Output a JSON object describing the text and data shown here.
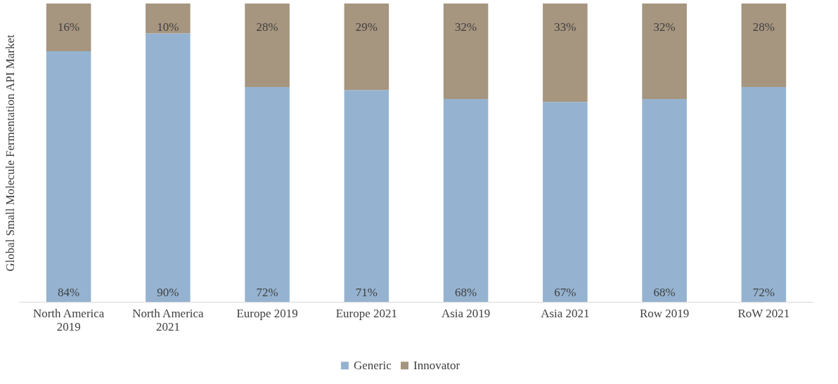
{
  "chart_data": {
    "type": "bar",
    "stacked": true,
    "ylabel": "Global Small Molecule Fermentation API Market",
    "categories": [
      "North America 2019",
      "North America 2021",
      "Europe 2019",
      "Europe 2021",
      "Asia 2019",
      "Asia 2021",
      "Row 2019",
      "RoW 2021"
    ],
    "series": [
      {
        "name": "Generic",
        "color": "#95b3d0",
        "values": [
          84,
          90,
          72,
          71,
          68,
          67,
          68,
          72
        ],
        "value_labels": [
          "84%",
          "90%",
          "72%",
          "71%",
          "68%",
          "67%",
          "68%",
          "72%"
        ]
      },
      {
        "name": "Innovator",
        "color": "#a6957f",
        "values": [
          16,
          10,
          28,
          29,
          32,
          33,
          32,
          28
        ],
        "value_labels": [
          "16%",
          "10%",
          "28%",
          "29%",
          "32%",
          "33%",
          "32%",
          "28%"
        ]
      }
    ],
    "legend": "bottom",
    "grid": false
  }
}
